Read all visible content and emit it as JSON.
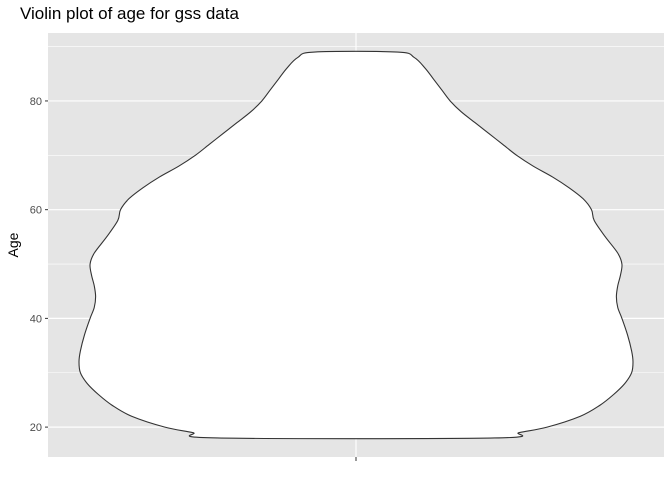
{
  "chart_data": {
    "type": "violin",
    "title": "Violin plot of age for gss data",
    "xlabel": "",
    "ylabel": "Age",
    "ylim": [
      14.5,
      92.5
    ],
    "yticks": [
      20,
      40,
      60,
      80
    ],
    "y_tick_labels": [
      "20",
      "40",
      "60",
      "80"
    ],
    "grid": true,
    "colors": {
      "panel_background": "#e5e5e5",
      "grid": "#ffffff",
      "violin_fill": "#ffffff",
      "violin_outline": "#333333",
      "tick_label": "#4d4d4d"
    },
    "violin": {
      "min": 18,
      "max": 89,
      "density_profile": [
        {
          "age": 18,
          "half_width": 0.5
        },
        {
          "age": 19,
          "half_width": 0.59
        },
        {
          "age": 20,
          "half_width": 0.69
        },
        {
          "age": 22,
          "half_width": 0.81
        },
        {
          "age": 24,
          "half_width": 0.88
        },
        {
          "age": 26,
          "half_width": 0.93
        },
        {
          "age": 28,
          "half_width": 0.97
        },
        {
          "age": 30,
          "half_width": 0.995
        },
        {
          "age": 32,
          "half_width": 1.0
        },
        {
          "age": 34,
          "half_width": 0.995
        },
        {
          "age": 37,
          "half_width": 0.98
        },
        {
          "age": 40,
          "half_width": 0.96
        },
        {
          "age": 42,
          "half_width": 0.945
        },
        {
          "age": 44,
          "half_width": 0.94
        },
        {
          "age": 46,
          "half_width": 0.945
        },
        {
          "age": 48,
          "half_width": 0.955
        },
        {
          "age": 50,
          "half_width": 0.96
        },
        {
          "age": 52,
          "half_width": 0.945
        },
        {
          "age": 55,
          "half_width": 0.9
        },
        {
          "age": 58,
          "half_width": 0.86
        },
        {
          "age": 60,
          "half_width": 0.85
        },
        {
          "age": 62,
          "half_width": 0.82
        },
        {
          "age": 64,
          "half_width": 0.77
        },
        {
          "age": 66,
          "half_width": 0.71
        },
        {
          "age": 68,
          "half_width": 0.64
        },
        {
          "age": 70,
          "half_width": 0.58
        },
        {
          "age": 72,
          "half_width": 0.53
        },
        {
          "age": 74,
          "half_width": 0.48
        },
        {
          "age": 76,
          "half_width": 0.43
        },
        {
          "age": 78,
          "half_width": 0.38
        },
        {
          "age": 80,
          "half_width": 0.34
        },
        {
          "age": 82,
          "half_width": 0.31
        },
        {
          "age": 84,
          "half_width": 0.28
        },
        {
          "age": 86,
          "half_width": 0.25
        },
        {
          "age": 88,
          "half_width": 0.21
        },
        {
          "age": 89,
          "half_width": 0.15
        }
      ]
    }
  }
}
